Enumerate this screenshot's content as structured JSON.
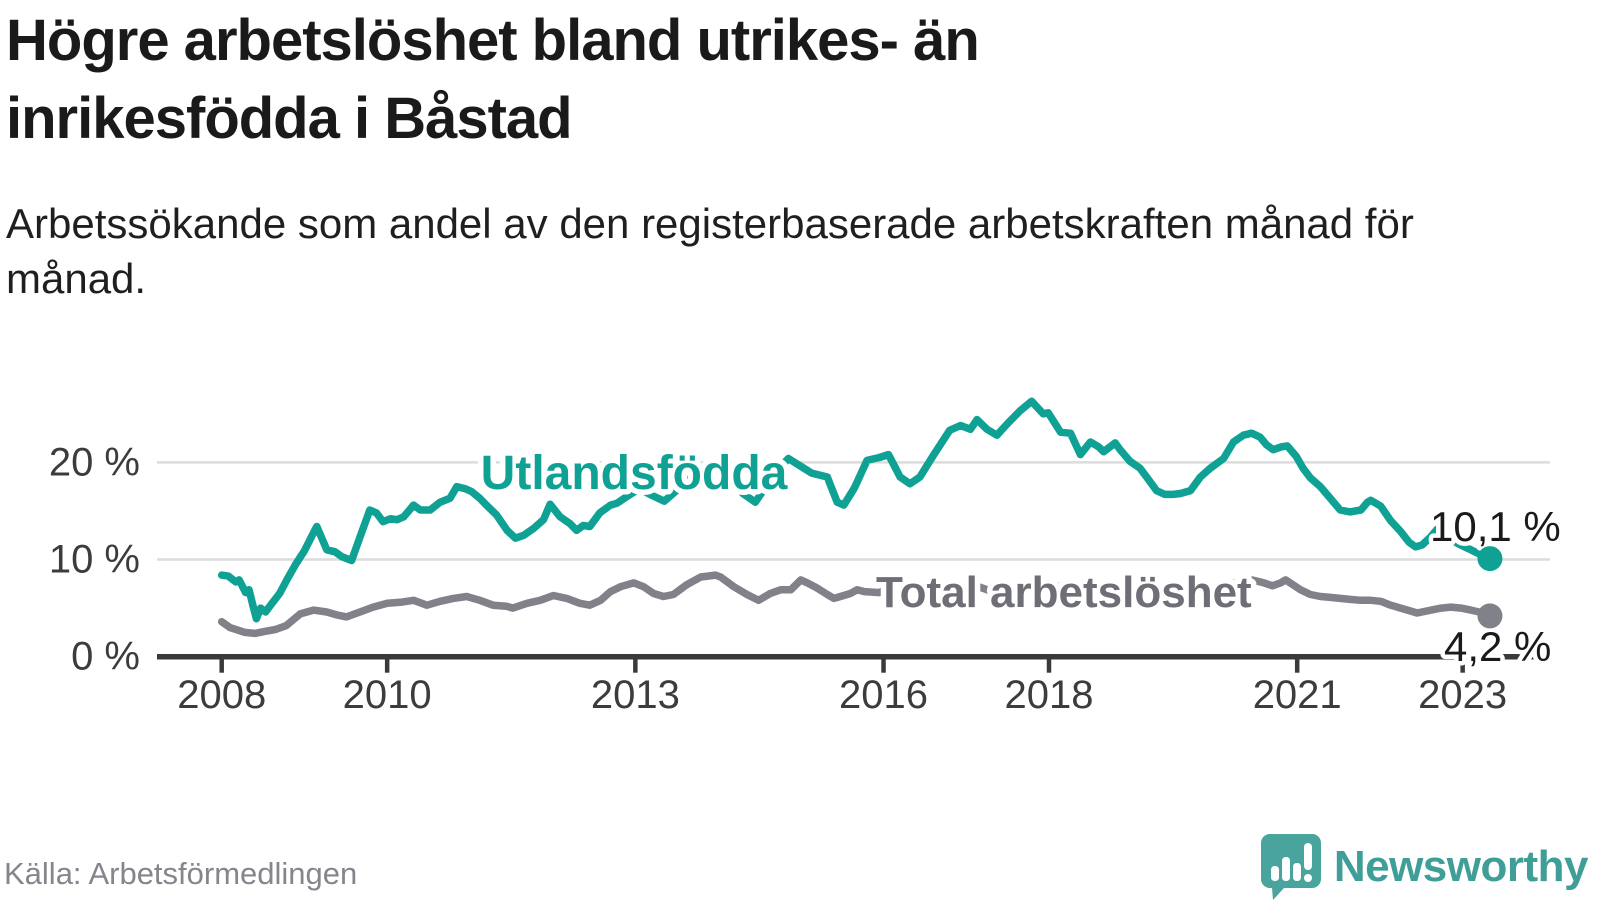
{
  "title": "Högre arbetslöshet bland utrikes- än inrikesfödda i Båstad",
  "subtitle": "Arbetssökande som andel av den registerbaserade arbetskraften månad för månad.",
  "source": "Källa: Arbetsförmedlingen",
  "logo": {
    "text": "Newsworthy"
  },
  "colors": {
    "foreign_line": "#0fa294",
    "total_line": "#81818a",
    "total_label": "#6e6e76",
    "grid": "#dcdcdc",
    "axis": "#3a3a3a",
    "tick_text": "#3c3c3c",
    "value_text": "#1a1a1a",
    "logo_teal": "#3f9e98",
    "icon_teal": "#4aa49e"
  },
  "chart_data": {
    "type": "line",
    "x_axis": {
      "ticks": [
        2008,
        2010,
        2013,
        2016,
        2018,
        2021,
        2023
      ],
      "range": [
        2007.3,
        2024.0
      ]
    },
    "y_axis": {
      "ticks": [
        0,
        10,
        20
      ],
      "tick_suffix": " %",
      "range": [
        0,
        27
      ]
    },
    "grid": "horizontal-only",
    "legend": "inline-labels",
    "series": [
      {
        "name": "Utlandsfödda",
        "color": "#0fa294",
        "end_value": 10.1,
        "end_label": "10,1 %",
        "points": [
          [
            2008.0,
            8.4
          ],
          [
            2008.08,
            8.3
          ],
          [
            2008.17,
            7.7
          ],
          [
            2008.21,
            7.9
          ],
          [
            2008.29,
            6.6
          ],
          [
            2008.33,
            6.9
          ],
          [
            2008.38,
            5.2
          ],
          [
            2008.42,
            3.9
          ],
          [
            2008.47,
            5.0
          ],
          [
            2008.53,
            4.6
          ],
          [
            2008.6,
            5.4
          ],
          [
            2008.7,
            6.5
          ],
          [
            2008.8,
            8.1
          ],
          [
            2008.9,
            9.6
          ],
          [
            2009.0,
            10.9
          ],
          [
            2009.1,
            12.6
          ],
          [
            2009.15,
            13.4
          ],
          [
            2009.27,
            11.0
          ],
          [
            2009.37,
            10.8
          ],
          [
            2009.45,
            10.3
          ],
          [
            2009.57,
            9.9
          ],
          [
            2009.67,
            12.3
          ],
          [
            2009.79,
            15.1
          ],
          [
            2009.87,
            14.8
          ],
          [
            2009.95,
            13.9
          ],
          [
            2010.04,
            14.2
          ],
          [
            2010.12,
            14.1
          ],
          [
            2010.2,
            14.4
          ],
          [
            2010.32,
            15.6
          ],
          [
            2010.4,
            15.1
          ],
          [
            2010.52,
            15.1
          ],
          [
            2010.64,
            15.9
          ],
          [
            2010.76,
            16.3
          ],
          [
            2010.84,
            17.5
          ],
          [
            2010.94,
            17.3
          ],
          [
            2011.02,
            17.0
          ],
          [
            2011.12,
            16.3
          ],
          [
            2011.2,
            15.6
          ],
          [
            2011.32,
            14.6
          ],
          [
            2011.45,
            13.0
          ],
          [
            2011.55,
            12.2
          ],
          [
            2011.65,
            12.5
          ],
          [
            2011.77,
            13.2
          ],
          [
            2011.89,
            14.1
          ],
          [
            2011.97,
            15.7
          ],
          [
            2012.09,
            14.4
          ],
          [
            2012.21,
            13.7
          ],
          [
            2012.29,
            13.0
          ],
          [
            2012.37,
            13.5
          ],
          [
            2012.45,
            13.4
          ],
          [
            2012.57,
            14.8
          ],
          [
            2012.7,
            15.6
          ],
          [
            2012.78,
            15.8
          ],
          [
            2012.9,
            16.5
          ],
          [
            2013.05,
            17.3
          ],
          [
            2013.2,
            16.6
          ],
          [
            2013.35,
            16.0
          ],
          [
            2013.55,
            17.5
          ],
          [
            2013.75,
            19.0
          ],
          [
            2013.95,
            19.8
          ],
          [
            2014.15,
            18.3
          ],
          [
            2014.3,
            16.8
          ],
          [
            2014.45,
            15.9
          ],
          [
            2014.6,
            17.8
          ],
          [
            2014.75,
            19.5
          ],
          [
            2014.85,
            20.4
          ],
          [
            2015.0,
            19.6
          ],
          [
            2015.13,
            18.9
          ],
          [
            2015.32,
            18.5
          ],
          [
            2015.44,
            15.9
          ],
          [
            2015.52,
            15.6
          ],
          [
            2015.65,
            17.4
          ],
          [
            2015.8,
            20.2
          ],
          [
            2015.95,
            20.5
          ],
          [
            2016.06,
            20.8
          ],
          [
            2016.2,
            18.5
          ],
          [
            2016.32,
            17.8
          ],
          [
            2016.44,
            18.5
          ],
          [
            2016.6,
            20.7
          ],
          [
            2016.8,
            23.3
          ],
          [
            2016.93,
            23.8
          ],
          [
            2017.05,
            23.4
          ],
          [
            2017.13,
            24.4
          ],
          [
            2017.25,
            23.4
          ],
          [
            2017.37,
            22.8
          ],
          [
            2017.5,
            24.0
          ],
          [
            2017.65,
            25.3
          ],
          [
            2017.79,
            26.3
          ],
          [
            2017.93,
            25.0
          ],
          [
            2017.99,
            25.1
          ],
          [
            2018.14,
            23.1
          ],
          [
            2018.26,
            23.0
          ],
          [
            2018.38,
            20.8
          ],
          [
            2018.5,
            22.1
          ],
          [
            2018.6,
            21.6
          ],
          [
            2018.66,
            21.1
          ],
          [
            2018.8,
            22.0
          ],
          [
            2018.86,
            21.3
          ],
          [
            2018.98,
            20.1
          ],
          [
            2019.1,
            19.4
          ],
          [
            2019.18,
            18.5
          ],
          [
            2019.3,
            17.1
          ],
          [
            2019.4,
            16.7
          ],
          [
            2019.5,
            16.7
          ],
          [
            2019.59,
            16.8
          ],
          [
            2019.71,
            17.1
          ],
          [
            2019.83,
            18.5
          ],
          [
            2019.95,
            19.4
          ],
          [
            2020.03,
            19.9
          ],
          [
            2020.11,
            20.4
          ],
          [
            2020.23,
            22.1
          ],
          [
            2020.35,
            22.8
          ],
          [
            2020.45,
            23.0
          ],
          [
            2020.55,
            22.6
          ],
          [
            2020.63,
            21.8
          ],
          [
            2020.71,
            21.3
          ],
          [
            2020.81,
            21.6
          ],
          [
            2020.88,
            21.7
          ],
          [
            2020.99,
            20.6
          ],
          [
            2021.07,
            19.4
          ],
          [
            2021.16,
            18.4
          ],
          [
            2021.28,
            17.5
          ],
          [
            2021.4,
            16.3
          ],
          [
            2021.52,
            15.1
          ],
          [
            2021.64,
            14.9
          ],
          [
            2021.77,
            15.1
          ],
          [
            2021.85,
            15.9
          ],
          [
            2021.89,
            16.1
          ],
          [
            2022.01,
            15.5
          ],
          [
            2022.13,
            14.0
          ],
          [
            2022.25,
            12.9
          ],
          [
            2022.35,
            11.8
          ],
          [
            2022.43,
            11.3
          ],
          [
            2022.51,
            11.5
          ],
          [
            2022.61,
            12.3
          ],
          [
            2022.69,
            13.1
          ],
          [
            2022.8,
            12.4
          ],
          [
            2022.95,
            11.6
          ],
          [
            2023.1,
            11.0
          ],
          [
            2023.22,
            10.5
          ],
          [
            2023.33,
            10.1
          ]
        ]
      },
      {
        "name": "Total arbetslöshet",
        "color": "#81818a",
        "end_value": 4.2,
        "end_label": "4,2 %",
        "points": [
          [
            2008.0,
            3.6
          ],
          [
            2008.1,
            3.0
          ],
          [
            2008.28,
            2.5
          ],
          [
            2008.4,
            2.4
          ],
          [
            2008.52,
            2.6
          ],
          [
            2008.65,
            2.8
          ],
          [
            2008.78,
            3.2
          ],
          [
            2008.95,
            4.4
          ],
          [
            2009.11,
            4.8
          ],
          [
            2009.27,
            4.6
          ],
          [
            2009.39,
            4.3
          ],
          [
            2009.51,
            4.1
          ],
          [
            2009.67,
            4.6
          ],
          [
            2009.83,
            5.1
          ],
          [
            2010.0,
            5.5
          ],
          [
            2010.16,
            5.6
          ],
          [
            2010.32,
            5.8
          ],
          [
            2010.48,
            5.3
          ],
          [
            2010.64,
            5.7
          ],
          [
            2010.8,
            6.0
          ],
          [
            2010.96,
            6.2
          ],
          [
            2011.12,
            5.8
          ],
          [
            2011.28,
            5.3
          ],
          [
            2011.44,
            5.2
          ],
          [
            2011.52,
            5.0
          ],
          [
            2011.69,
            5.5
          ],
          [
            2011.85,
            5.8
          ],
          [
            2012.01,
            6.3
          ],
          [
            2012.17,
            6.0
          ],
          [
            2012.33,
            5.5
          ],
          [
            2012.45,
            5.3
          ],
          [
            2012.58,
            5.8
          ],
          [
            2012.7,
            6.7
          ],
          [
            2012.82,
            7.2
          ],
          [
            2012.98,
            7.6
          ],
          [
            2013.1,
            7.2
          ],
          [
            2013.22,
            6.5
          ],
          [
            2013.34,
            6.2
          ],
          [
            2013.46,
            6.4
          ],
          [
            2013.62,
            7.4
          ],
          [
            2013.79,
            8.2
          ],
          [
            2013.97,
            8.4
          ],
          [
            2014.03,
            8.2
          ],
          [
            2014.19,
            7.2
          ],
          [
            2014.35,
            6.4
          ],
          [
            2014.49,
            5.8
          ],
          [
            2014.63,
            6.5
          ],
          [
            2014.76,
            6.9
          ],
          [
            2014.88,
            6.9
          ],
          [
            2015.0,
            7.9
          ],
          [
            2015.08,
            7.6
          ],
          [
            2015.19,
            7.1
          ],
          [
            2015.32,
            6.4
          ],
          [
            2015.4,
            6.0
          ],
          [
            2015.48,
            6.2
          ],
          [
            2015.6,
            6.5
          ],
          [
            2015.68,
            6.9
          ],
          [
            2015.77,
            6.7
          ],
          [
            2015.95,
            6.6
          ],
          [
            2016.1,
            7.2
          ],
          [
            2016.35,
            6.4
          ],
          [
            2016.6,
            6.7
          ],
          [
            2016.9,
            7.2
          ],
          [
            2017.05,
            7.5
          ],
          [
            2017.35,
            6.6
          ],
          [
            2017.6,
            6.9
          ],
          [
            2017.95,
            7.5
          ],
          [
            2018.15,
            7.2
          ],
          [
            2018.4,
            6.7
          ],
          [
            2018.65,
            6.9
          ],
          [
            2019.0,
            7.3
          ],
          [
            2019.35,
            6.6
          ],
          [
            2019.65,
            6.8
          ],
          [
            2019.95,
            7.0
          ],
          [
            2020.2,
            7.5
          ],
          [
            2020.45,
            7.9
          ],
          [
            2020.6,
            7.6
          ],
          [
            2020.7,
            7.3
          ],
          [
            2020.8,
            7.6
          ],
          [
            2020.86,
            7.9
          ],
          [
            2021.04,
            6.9
          ],
          [
            2021.16,
            6.4
          ],
          [
            2021.28,
            6.2
          ],
          [
            2021.4,
            6.1
          ],
          [
            2021.52,
            6.0
          ],
          [
            2021.64,
            5.9
          ],
          [
            2021.77,
            5.8
          ],
          [
            2021.89,
            5.8
          ],
          [
            2022.01,
            5.7
          ],
          [
            2022.13,
            5.3
          ],
          [
            2022.25,
            5.0
          ],
          [
            2022.37,
            4.7
          ],
          [
            2022.45,
            4.5
          ],
          [
            2022.62,
            4.8
          ],
          [
            2022.74,
            5.0
          ],
          [
            2022.86,
            5.1
          ],
          [
            2022.98,
            5.0
          ],
          [
            2023.1,
            4.8
          ],
          [
            2023.2,
            4.6
          ],
          [
            2023.33,
            4.2
          ]
        ]
      }
    ]
  }
}
